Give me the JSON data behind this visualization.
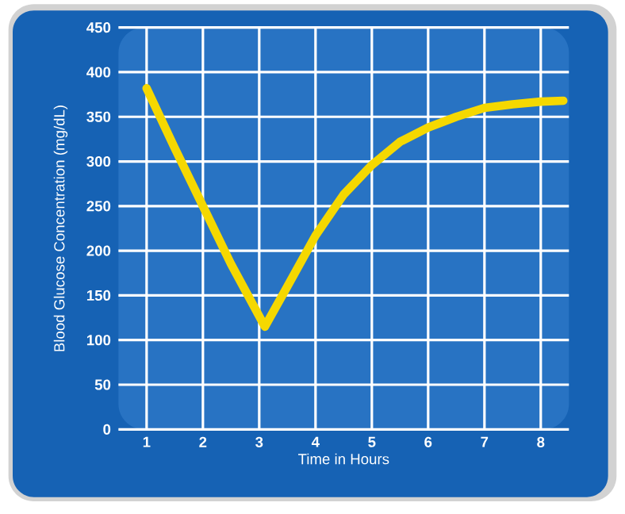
{
  "chart_data": {
    "type": "line",
    "xlabel": "Time in Hours",
    "ylabel": "Blood Glucose Concentration (mg/dL)",
    "x": [
      1,
      1.5,
      2,
      2.5,
      3.1,
      3.5,
      4,
      4.5,
      5,
      5.5,
      6,
      6.5,
      7,
      7.5,
      8,
      8.4
    ],
    "series": [
      {
        "color": "#f5d800",
        "values": [
          382,
          315,
          250,
          185,
          115,
          160,
          217,
          263,
          296,
          322,
          338,
          350,
          360,
          364,
          367,
          368
        ]
      }
    ],
    "xlim": [
      0.5,
      8.5
    ],
    "xticks": [
      1,
      2,
      3,
      4,
      5,
      6,
      7,
      8
    ],
    "ylim": [
      0,
      450
    ],
    "yticks": [
      0,
      50,
      100,
      150,
      200,
      250,
      300,
      350,
      400,
      450
    ],
    "grid": true,
    "marker": "none",
    "line_style": "solid"
  }
}
